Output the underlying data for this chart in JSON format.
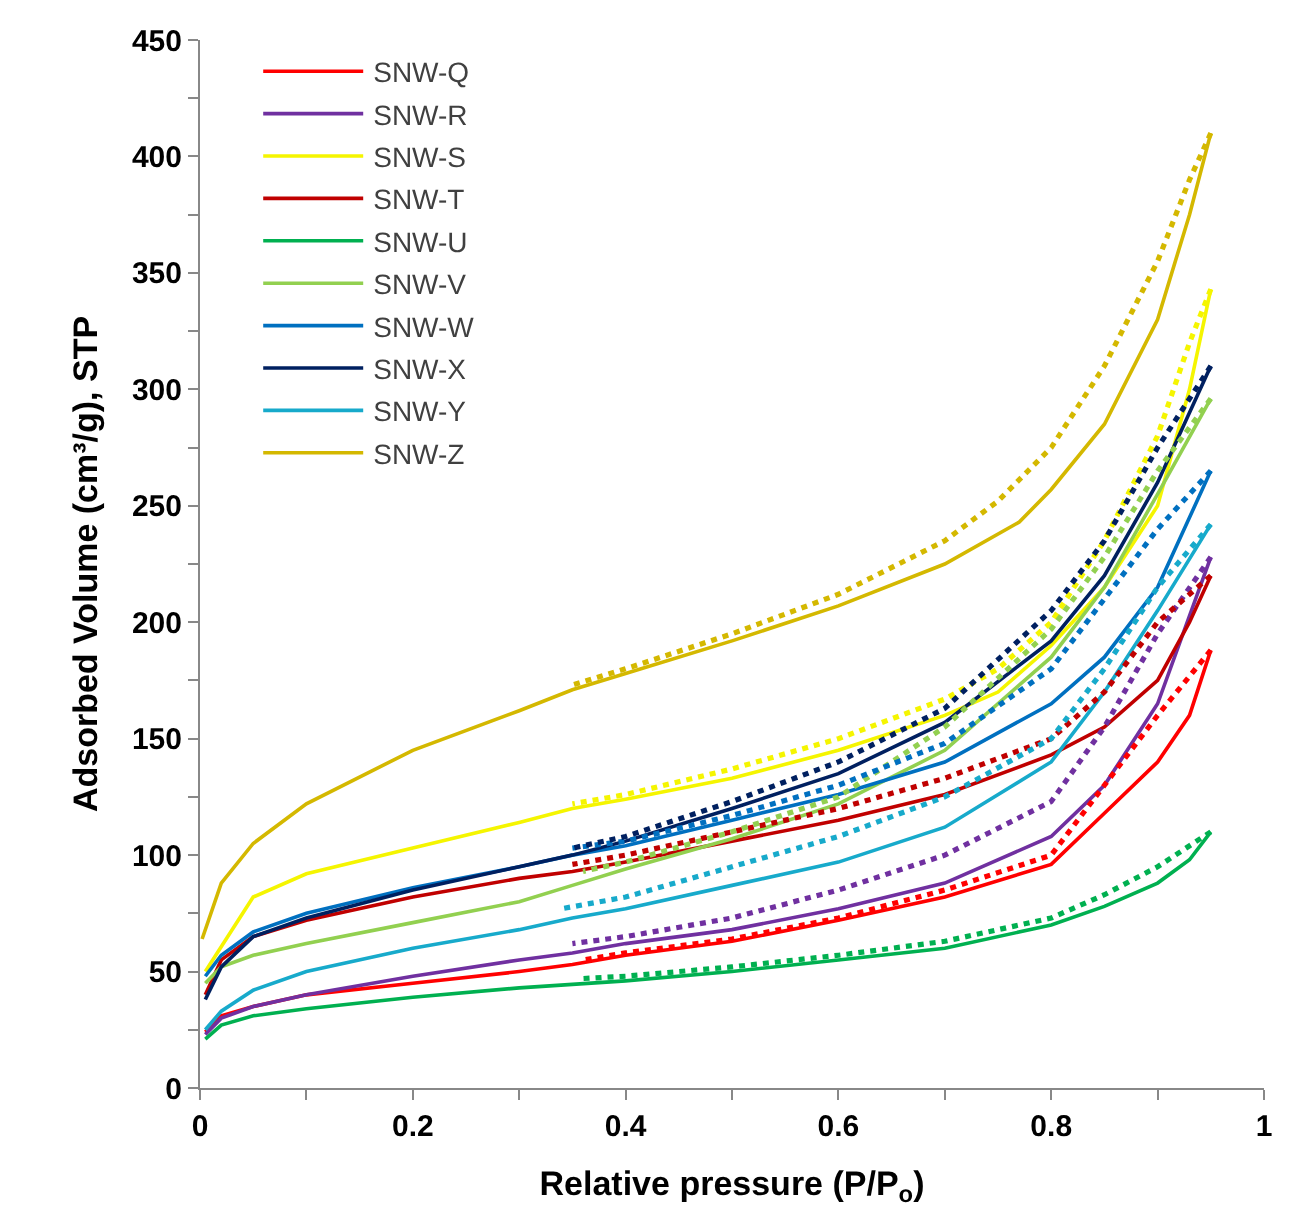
{
  "chart_data": {
    "type": "line",
    "xlabel": "Relative pressure (P/P$_{o}$)",
    "ylabel": "Adsorbed Volume (cm³/g), STP",
    "xlim": [
      0,
      1
    ],
    "ylim": [
      0,
      450
    ],
    "xticks": [
      0,
      {
        "value": 0.1,
        "label": null
      },
      0.2,
      {
        "value": 0.3,
        "label": null
      },
      0.4,
      {
        "value": 0.5,
        "label": null
      },
      0.6,
      {
        "value": 0.7,
        "label": null
      },
      0.8,
      {
        "value": 0.9,
        "label": null
      },
      1
    ],
    "yticks": [
      0,
      {
        "value": 25,
        "label": null
      },
      50,
      {
        "value": 75,
        "label": null
      },
      100,
      {
        "value": 125,
        "label": null
      },
      150,
      {
        "value": 175,
        "label": null
      },
      200,
      {
        "value": 225,
        "label": null
      },
      250,
      {
        "value": 275,
        "label": null
      },
      300,
      {
        "value": 325,
        "label": null
      },
      350,
      {
        "value": 375,
        "label": null
      },
      400,
      {
        "value": 425,
        "label": null
      },
      450
    ],
    "grid": false,
    "legend": "top left",
    "marker": "none",
    "line_style": "solid",
    "series": [
      {
        "name": "SNW-Q",
        "color": "#ff0000",
        "x": [
          0.005,
          0.02,
          0.05,
          0.1,
          0.2,
          0.3,
          0.35,
          0.4,
          0.5,
          0.6,
          0.7,
          0.8,
          0.85,
          0.9,
          0.93,
          0.95
        ],
        "values": [
          24,
          31,
          35,
          40,
          45,
          50,
          53,
          57,
          63,
          72,
          82,
          96,
          118,
          140,
          160,
          188
        ]
      },
      {
        "name": "SNW-R",
        "color": "#7030a0",
        "x": [
          0.005,
          0.02,
          0.05,
          0.1,
          0.2,
          0.3,
          0.35,
          0.4,
          0.5,
          0.6,
          0.7,
          0.8,
          0.85,
          0.9,
          0.95
        ],
        "values": [
          23,
          30,
          35,
          40,
          48,
          55,
          58,
          62,
          68,
          77,
          88,
          108,
          130,
          165,
          228
        ]
      },
      {
        "name": "SNW-S",
        "color": "#f5f500",
        "x": [
          0.005,
          0.05,
          0.1,
          0.2,
          0.3,
          0.35,
          0.4,
          0.5,
          0.6,
          0.7,
          0.75,
          0.8,
          0.85,
          0.9,
          0.93,
          0.95
        ],
        "values": [
          50,
          82,
          92,
          103,
          114,
          120,
          124,
          133,
          145,
          160,
          170,
          190,
          215,
          250,
          300,
          343
        ]
      },
      {
        "name": "SNW-T",
        "color": "#c00000",
        "x": [
          0.005,
          0.02,
          0.05,
          0.1,
          0.2,
          0.3,
          0.35,
          0.4,
          0.5,
          0.6,
          0.7,
          0.8,
          0.85,
          0.9,
          0.93,
          0.95
        ],
        "values": [
          40,
          55,
          65,
          72,
          82,
          90,
          93,
          97,
          106,
          115,
          126,
          143,
          155,
          175,
          200,
          220
        ]
      },
      {
        "name": "SNW-U",
        "color": "#00b050",
        "x": [
          0.005,
          0.02,
          0.05,
          0.1,
          0.2,
          0.3,
          0.4,
          0.5,
          0.6,
          0.7,
          0.8,
          0.85,
          0.9,
          0.93,
          0.95
        ],
        "values": [
          21,
          27,
          31,
          34,
          39,
          43,
          46,
          50,
          55,
          60,
          70,
          78,
          88,
          98,
          110
        ]
      },
      {
        "name": "SNW-V",
        "color": "#92d050",
        "x": [
          0.005,
          0.02,
          0.05,
          0.1,
          0.2,
          0.3,
          0.35,
          0.4,
          0.5,
          0.6,
          0.7,
          0.8,
          0.85,
          0.9,
          0.95
        ],
        "values": [
          45,
          52,
          57,
          62,
          71,
          80,
          87,
          94,
          107,
          122,
          145,
          185,
          215,
          255,
          296
        ]
      },
      {
        "name": "SNW-W",
        "color": "#0070c0",
        "x": [
          0.005,
          0.02,
          0.05,
          0.1,
          0.2,
          0.3,
          0.35,
          0.4,
          0.5,
          0.6,
          0.7,
          0.8,
          0.85,
          0.9,
          0.95
        ],
        "values": [
          48,
          57,
          67,
          75,
          86,
          95,
          100,
          104,
          115,
          126,
          140,
          165,
          185,
          215,
          265
        ]
      },
      {
        "name": "SNW-X",
        "color": "#002060",
        "x": [
          0.005,
          0.02,
          0.05,
          0.1,
          0.2,
          0.3,
          0.35,
          0.4,
          0.5,
          0.6,
          0.7,
          0.8,
          0.85,
          0.9,
          0.95
        ],
        "values": [
          38,
          52,
          65,
          73,
          85,
          95,
          100,
          106,
          120,
          135,
          157,
          192,
          220,
          260,
          310
        ]
      },
      {
        "name": "SNW-Y",
        "color": "#17aacb",
        "x": [
          0.005,
          0.02,
          0.05,
          0.1,
          0.2,
          0.3,
          0.35,
          0.4,
          0.5,
          0.6,
          0.7,
          0.8,
          0.85,
          0.9,
          0.95
        ],
        "values": [
          25,
          33,
          42,
          50,
          60,
          68,
          73,
          77,
          87,
          97,
          112,
          140,
          170,
          205,
          242
        ]
      },
      {
        "name": "SNW-Z",
        "color": "#d4b800",
        "x": [
          0.002,
          0.02,
          0.05,
          0.1,
          0.2,
          0.3,
          0.35,
          0.4,
          0.5,
          0.6,
          0.7,
          0.77,
          0.8,
          0.85,
          0.9,
          0.93,
          0.95
        ],
        "values": [
          64,
          88,
          105,
          122,
          145,
          162,
          171,
          178,
          192,
          207,
          225,
          243,
          257,
          285,
          330,
          375,
          410
        ]
      },
      {
        "color": "#ff0000",
        "line_style": "dotted",
        "x": [
          0.95,
          0.9,
          0.85,
          0.8,
          0.7,
          0.6,
          0.5,
          0.4,
          0.36
        ],
        "values": [
          188,
          160,
          130,
          100,
          85,
          73,
          64,
          58,
          55
        ]
      },
      {
        "color": "#7030a0",
        "line_style": "dotted",
        "x": [
          0.95,
          0.9,
          0.85,
          0.8,
          0.7,
          0.6,
          0.5,
          0.4,
          0.35
        ],
        "values": [
          228,
          195,
          155,
          123,
          100,
          85,
          73,
          65,
          62
        ]
      },
      {
        "color": "#f5f500",
        "line_style": "dotted",
        "x": [
          0.95,
          0.93,
          0.9,
          0.85,
          0.8,
          0.75,
          0.7,
          0.6,
          0.5,
          0.4,
          0.35
        ],
        "values": [
          343,
          320,
          280,
          235,
          200,
          180,
          167,
          150,
          137,
          126,
          122
        ]
      },
      {
        "color": "#c00000",
        "line_style": "dotted",
        "x": [
          0.95,
          0.9,
          0.85,
          0.8,
          0.7,
          0.6,
          0.5,
          0.4,
          0.35
        ],
        "values": [
          220,
          200,
          170,
          150,
          133,
          120,
          110,
          100,
          96
        ]
      },
      {
        "color": "#00b050",
        "line_style": "dotted",
        "x": [
          0.95,
          0.9,
          0.85,
          0.8,
          0.7,
          0.6,
          0.5,
          0.4,
          0.36
        ],
        "values": [
          110,
          95,
          83,
          73,
          63,
          57,
          52,
          48,
          47
        ]
      },
      {
        "color": "#92d050",
        "line_style": "dotted",
        "x": [
          0.95,
          0.9,
          0.85,
          0.8,
          0.7,
          0.6,
          0.5,
          0.4,
          0.36
        ],
        "values": [
          296,
          265,
          228,
          197,
          155,
          125,
          110,
          97,
          93
        ]
      },
      {
        "color": "#0070c0",
        "line_style": "dotted",
        "x": [
          0.95,
          0.9,
          0.85,
          0.8,
          0.7,
          0.6,
          0.5,
          0.4,
          0.35
        ],
        "values": [
          265,
          240,
          210,
          180,
          148,
          130,
          117,
          106,
          103
        ]
      },
      {
        "color": "#002060",
        "line_style": "dotted",
        "x": [
          0.95,
          0.9,
          0.85,
          0.8,
          0.7,
          0.6,
          0.5,
          0.4,
          0.35
        ],
        "values": [
          310,
          275,
          235,
          205,
          163,
          140,
          123,
          108,
          103
        ]
      },
      {
        "color": "#17aacb",
        "line_style": "dotted",
        "x": [
          0.95,
          0.9,
          0.85,
          0.8,
          0.7,
          0.6,
          0.5,
          0.4,
          0.34
        ],
        "values": [
          242,
          215,
          180,
          150,
          125,
          108,
          95,
          82,
          77
        ]
      },
      {
        "color": "#d4b800",
        "line_style": "dotted",
        "x": [
          0.95,
          0.93,
          0.9,
          0.85,
          0.8,
          0.75,
          0.7,
          0.6,
          0.5,
          0.4,
          0.35
        ],
        "values": [
          410,
          390,
          355,
          310,
          275,
          252,
          235,
          212,
          195,
          180,
          173
        ]
      }
    ]
  }
}
